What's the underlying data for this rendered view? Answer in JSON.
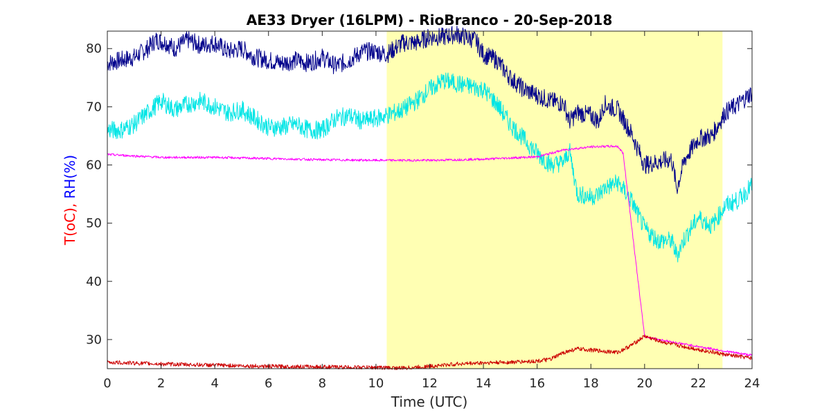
{
  "chart_data": {
    "type": "line",
    "title": "AE33 Dryer (16LPM)  - RioBranco - 20-Sep-2018",
    "xlabel": "Time (UTC)",
    "ylabel_parts": [
      {
        "text": "T(oC), ",
        "color": "#ff0000"
      },
      {
        "text": "RH(%)",
        "color": "#0000ff"
      }
    ],
    "xlim": [
      0,
      24
    ],
    "ylim": [
      25,
      83
    ],
    "xticks": [
      0,
      2,
      4,
      6,
      8,
      10,
      12,
      14,
      16,
      18,
      20,
      22,
      24
    ],
    "yticks": [
      30,
      40,
      50,
      60,
      70,
      80
    ],
    "shaded_region": {
      "x": [
        10.4,
        22.9
      ],
      "color": "#ffffb3"
    },
    "grid": false,
    "series": [
      {
        "color": "#00008b",
        "noise": 1.6,
        "x": [
          0,
          0.5,
          1,
          1.5,
          1.8,
          2.2,
          2.5,
          3,
          3.5,
          4,
          4.5,
          5,
          5.5,
          6,
          6.5,
          7,
          7.5,
          8,
          8.5,
          9,
          9.5,
          10,
          10.4,
          11,
          11.5,
          12,
          12.5,
          13,
          13.3,
          13.7,
          14,
          14.5,
          15,
          15.5,
          16,
          16.5,
          17,
          17.2,
          17.5,
          18,
          18.3,
          18.5,
          18.7,
          19,
          19.5,
          20,
          20.5,
          21,
          21.2,
          21.5,
          22,
          22.5,
          23,
          23.5,
          24
        ],
        "y": [
          77.5,
          78,
          78.5,
          80,
          81.5,
          81,
          80,
          81.5,
          80.5,
          81,
          79.5,
          80,
          78.5,
          78,
          77.5,
          78,
          77.5,
          78.5,
          77,
          78,
          79.5,
          79.5,
          79,
          81,
          81,
          82,
          82,
          82.5,
          82,
          81.5,
          79,
          78,
          75,
          73,
          72,
          71,
          70.5,
          67.5,
          69,
          68.5,
          67.5,
          70.5,
          70,
          69.5,
          65.5,
          60,
          60.5,
          61,
          56,
          61,
          64.5,
          65,
          69,
          70.5,
          72.5
        ]
      },
      {
        "color": "#00e5e5",
        "noise": 1.6,
        "x": [
          0,
          0.5,
          1,
          1.5,
          2,
          2.5,
          3,
          3.5,
          4,
          4.5,
          5,
          5.5,
          6,
          6.5,
          7,
          7.5,
          8,
          8.5,
          9,
          9.5,
          10,
          10.4,
          11,
          11.5,
          12,
          12.5,
          13,
          13.5,
          14,
          14.5,
          15,
          15.5,
          16,
          16.5,
          17,
          17.2,
          17.5,
          18,
          18.3,
          18.5,
          19,
          19.5,
          20,
          20.5,
          21,
          21.2,
          21.5,
          22,
          22.5,
          23,
          23.5,
          24
        ],
        "y": [
          66,
          66,
          67,
          69,
          71,
          69.5,
          70.5,
          71,
          70,
          69,
          69.5,
          68,
          66.5,
          66.5,
          67,
          66,
          66,
          68,
          68.5,
          67.5,
          68,
          68.5,
          69.5,
          71,
          73,
          74.5,
          74,
          73.5,
          73,
          70.5,
          67,
          64.5,
          62,
          60,
          60.5,
          62.5,
          55,
          54.5,
          55,
          56,
          57,
          54,
          49,
          47,
          47,
          44.5,
          47.5,
          51,
          49.5,
          53,
          54,
          56.5
        ]
      },
      {
        "color": "#ff00ff",
        "noise": 0.2,
        "x": [
          0,
          2,
          4,
          6,
          8,
          10,
          12,
          14,
          16,
          17,
          18,
          18.5,
          19,
          19.2,
          20,
          21,
          22,
          23,
          24
        ],
        "y": [
          61.8,
          61.3,
          61.3,
          61.1,
          60.9,
          60.8,
          60.8,
          61,
          61.4,
          62.6,
          63.1,
          63.2,
          63.2,
          62,
          30.5,
          29.6,
          28.8,
          28,
          27.3
        ]
      },
      {
        "color": "#cc0000",
        "noise": 0.35,
        "x": [
          0,
          2,
          4,
          6,
          8,
          10,
          11,
          12,
          13,
          14,
          15,
          16,
          16.5,
          17,
          17.5,
          18,
          18.5,
          19,
          19.5,
          20,
          20.5,
          21,
          22,
          23,
          24
        ],
        "y": [
          26.1,
          25.8,
          25.6,
          25.4,
          25.3,
          25.2,
          25.1,
          25.4,
          25.8,
          26,
          26.1,
          26.3,
          26.6,
          27.8,
          28.4,
          28.2,
          28,
          27.8,
          29,
          30.6,
          29.8,
          29.2,
          28.3,
          27.4,
          26.8
        ]
      }
    ]
  }
}
